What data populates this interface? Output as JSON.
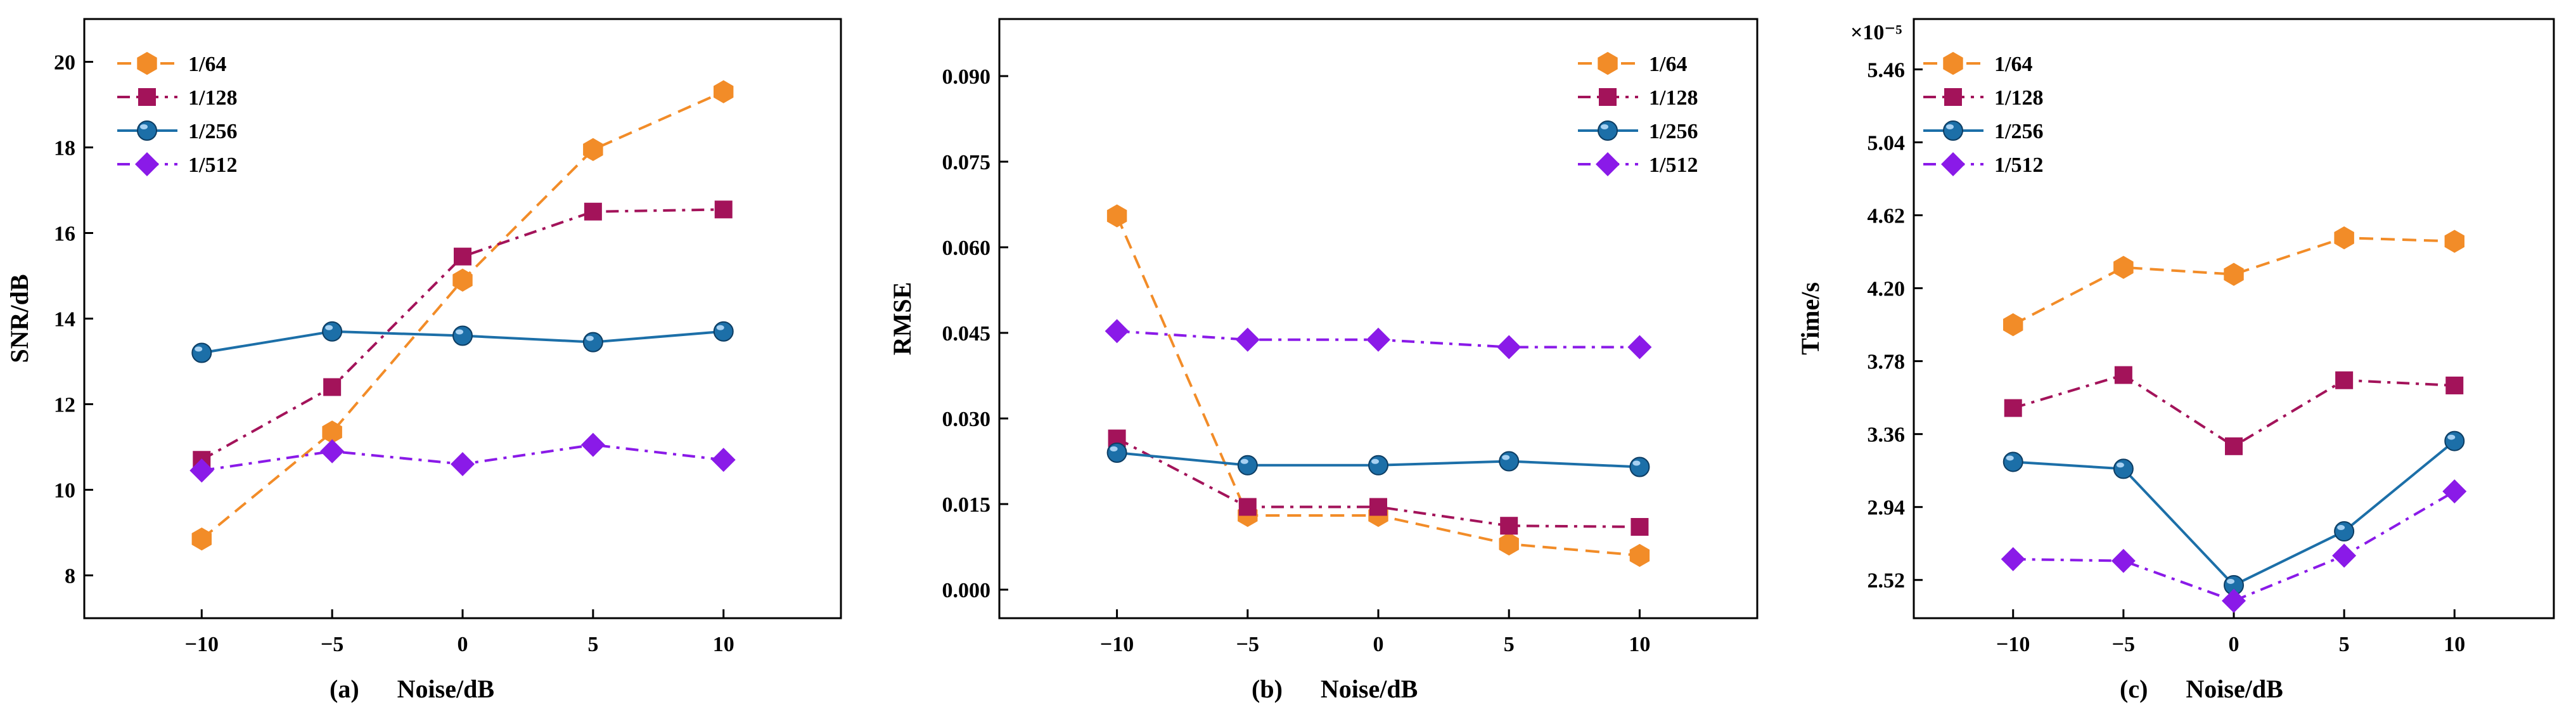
{
  "chart_data": [
    {
      "type": "line",
      "caption_label": "(a)",
      "caption_text": "Noise/dB",
      "xlabel": "",
      "ylabel": "SNR/dB",
      "x": [
        -10,
        -5,
        0,
        5,
        10
      ],
      "xticks": [
        -10,
        -5,
        0,
        5,
        10
      ],
      "xtick_labels": [
        "−10",
        "−5",
        "0",
        "5",
        "10"
      ],
      "xlim": [
        -14.5,
        14.5
      ],
      "ylim": [
        7,
        21
      ],
      "yticks": [
        8,
        10,
        12,
        14,
        16,
        18,
        20
      ],
      "ytick_labels": [
        "8",
        "10",
        "12",
        "14",
        "16",
        "18",
        "20"
      ],
      "exponent_label": "",
      "legend_position": "top-left",
      "series": [
        {
          "name": "1/64",
          "values": [
            8.85,
            11.35,
            14.9,
            17.95,
            19.3
          ],
          "color": "#f28c28",
          "dash": "dash",
          "marker": "hexagon"
        },
        {
          "name": "1/128",
          "values": [
            10.7,
            12.4,
            15.45,
            16.5,
            16.55
          ],
          "color": "#a3135a",
          "dash": "dashdot",
          "marker": "square"
        },
        {
          "name": "1/256",
          "values": [
            13.2,
            13.7,
            13.6,
            13.45,
            13.7
          ],
          "color": "#1c6fa8",
          "dash": "solid",
          "marker": "sphere"
        },
        {
          "name": "1/512",
          "values": [
            10.45,
            10.9,
            10.6,
            11.05,
            10.7
          ],
          "color": "#8a1ae8",
          "dash": "dashdot",
          "marker": "diamond"
        }
      ]
    },
    {
      "type": "line",
      "caption_label": "(b)",
      "caption_text": "Noise/dB",
      "xlabel": "",
      "ylabel": "RMSE",
      "x": [
        -10,
        -5,
        0,
        5,
        10
      ],
      "xticks": [
        -10,
        -5,
        0,
        5,
        10
      ],
      "xtick_labels": [
        "−10",
        "−5",
        "0",
        "5",
        "10"
      ],
      "xlim": [
        -14.5,
        14.5
      ],
      "ylim": [
        -0.005,
        0.1
      ],
      "yticks": [
        0.0,
        0.015,
        0.03,
        0.045,
        0.06,
        0.075,
        0.09
      ],
      "ytick_labels": [
        "0.000",
        "0.015",
        "0.030",
        "0.045",
        "0.060",
        "0.075",
        "0.090"
      ],
      "exponent_label": "",
      "legend_position": "top-right",
      "series": [
        {
          "name": "1/64",
          "values": [
            0.0655,
            0.013,
            0.013,
            0.008,
            0.006
          ],
          "color": "#f28c28",
          "dash": "dash",
          "marker": "hexagon"
        },
        {
          "name": "1/128",
          "values": [
            0.0265,
            0.0145,
            0.0145,
            0.0112,
            0.011
          ],
          "color": "#a3135a",
          "dash": "dashdot",
          "marker": "square"
        },
        {
          "name": "1/256",
          "values": [
            0.024,
            0.0218,
            0.0218,
            0.0225,
            0.0215
          ],
          "color": "#1c6fa8",
          "dash": "solid",
          "marker": "sphere"
        },
        {
          "name": "1/512",
          "values": [
            0.0453,
            0.0438,
            0.0438,
            0.0425,
            0.0425
          ],
          "color": "#8a1ae8",
          "dash": "dashdot",
          "marker": "diamond"
        }
      ]
    },
    {
      "type": "line",
      "caption_label": "(c)",
      "caption_text": "Noise/dB",
      "xlabel": "",
      "ylabel": "Time/s",
      "x": [
        -10,
        -5,
        0,
        5,
        10
      ],
      "xticks": [
        -10,
        -5,
        0,
        5,
        10
      ],
      "xtick_labels": [
        "−10",
        "−5",
        "0",
        "5",
        "10"
      ],
      "xlim": [
        -14.5,
        14.5
      ],
      "ylim": [
        2.3,
        5.75
      ],
      "yticks": [
        2.52,
        2.94,
        3.36,
        3.78,
        4.2,
        4.62,
        5.04,
        5.46
      ],
      "ytick_labels": [
        "2.52",
        "2.94",
        "3.36",
        "3.78",
        "4.20",
        "4.62",
        "5.04",
        "5.46"
      ],
      "exponent_label": "×10⁻⁵",
      "legend_position": "top-left",
      "series": [
        {
          "name": "1/64",
          "values": [
            3.99,
            4.32,
            4.28,
            4.49,
            4.47
          ],
          "color": "#f28c28",
          "dash": "dash",
          "marker": "hexagon"
        },
        {
          "name": "1/128",
          "values": [
            3.51,
            3.7,
            3.29,
            3.67,
            3.64
          ],
          "color": "#a3135a",
          "dash": "dashdot",
          "marker": "square"
        },
        {
          "name": "1/256",
          "values": [
            3.2,
            3.16,
            2.49,
            2.8,
            3.32
          ],
          "color": "#1c6fa8",
          "dash": "solid",
          "marker": "sphere"
        },
        {
          "name": "1/512",
          "values": [
            2.64,
            2.63,
            2.4,
            2.66,
            3.03
          ],
          "color": "#8a1ae8",
          "dash": "dashdot",
          "marker": "diamond"
        }
      ]
    }
  ]
}
